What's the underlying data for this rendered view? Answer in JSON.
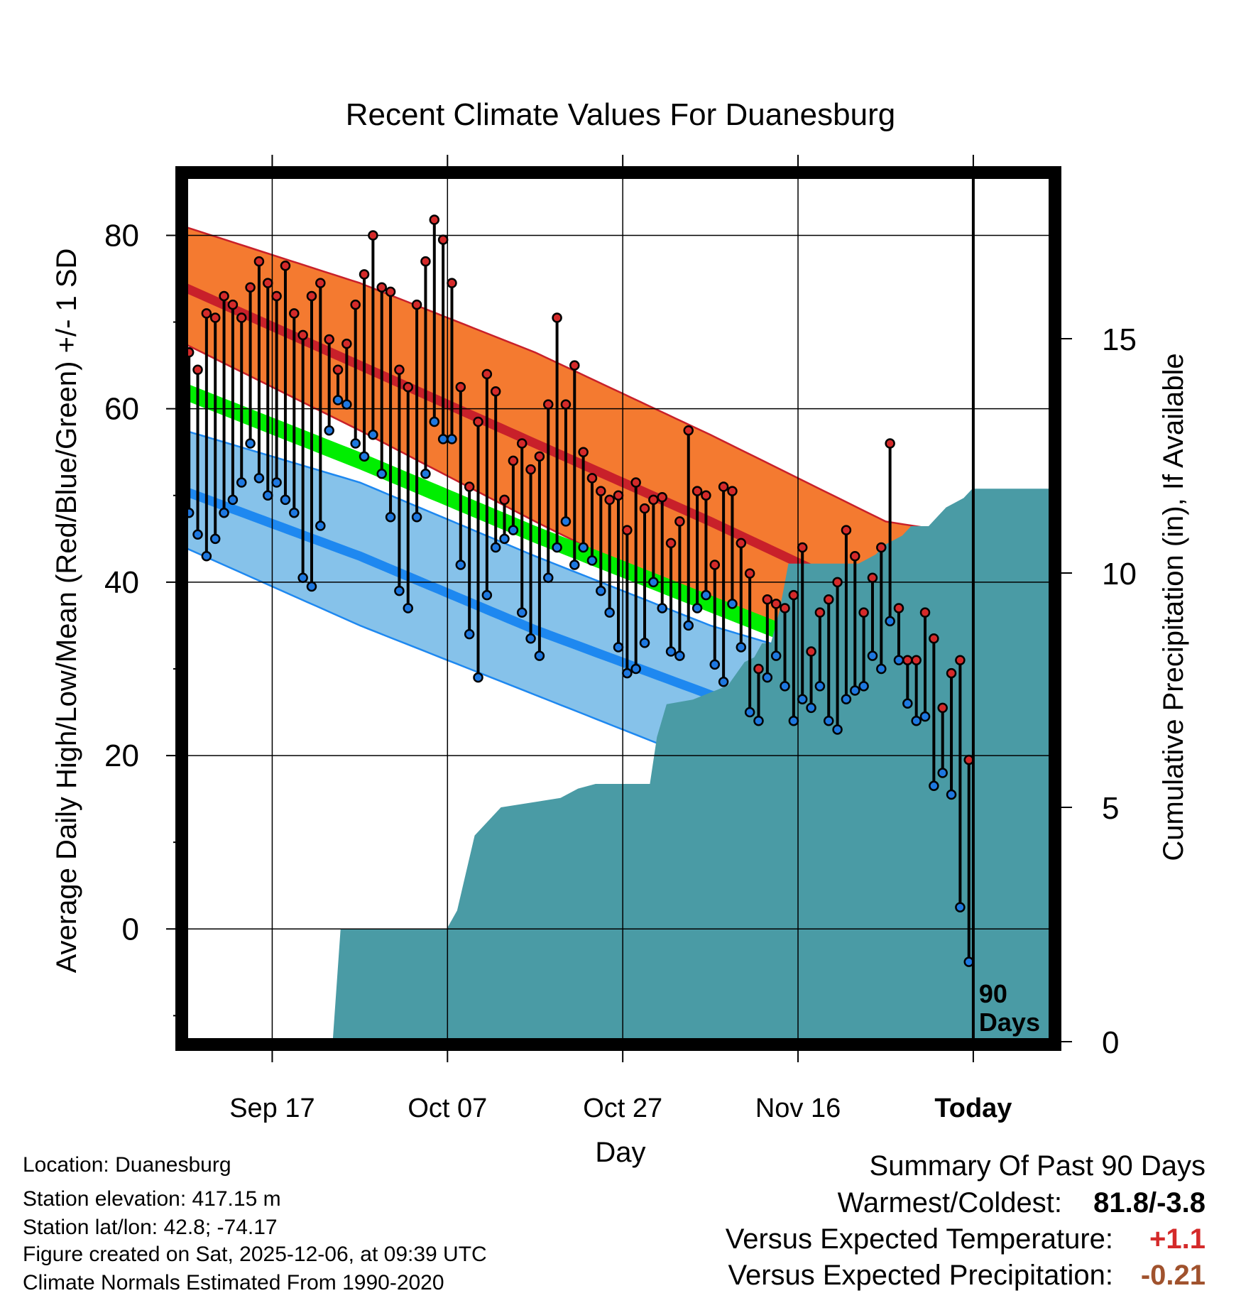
{
  "chart_data": {
    "type": "line",
    "title": "Recent Climate Values For Duanesburg",
    "xlabel": "Day",
    "ylabel": "Average Daily High/Low/Mean (Red/Blue/Green) +/- 1 SD",
    "ylabel_right": "Cumulative Precipitation (in), If Available",
    "x_ticks": [
      {
        "label": "Sep 17",
        "day": 10
      },
      {
        "label": "Oct 07",
        "day": 30
      },
      {
        "label": "Oct 27",
        "day": 50
      },
      {
        "label": "Nov 16",
        "day": 70
      },
      {
        "label": "Today",
        "day": 90
      }
    ],
    "today_day": 90,
    "today_annotation": "90 Days",
    "xlim": [
      0,
      99
    ],
    "ylim": [
      -13,
      87
    ],
    "y_ticks": [
      0,
      20,
      40,
      60,
      80
    ],
    "y2_ticks": [
      0,
      5,
      10,
      15
    ],
    "normals": {
      "high_mean": [
        74,
        65,
        56,
        47,
        37.5,
        34
      ],
      "high_upper": [
        81,
        74.5,
        66.5,
        57,
        47,
        44
      ],
      "high_lower": [
        67.5,
        57.5,
        47,
        37,
        28,
        24
      ],
      "low_mean": [
        50.5,
        43,
        34.5,
        27,
        21,
        17.5
      ],
      "low_upper": [
        57.5,
        51.5,
        43,
        35,
        29,
        29
      ],
      "low_lower": [
        44,
        35,
        27,
        19,
        10,
        7
      ],
      "mean": [
        62,
        54,
        45.5,
        37.5,
        29.5,
        25.5
      ],
      "mean_band_width": 2,
      "days": [
        0,
        20,
        40,
        60,
        80,
        99
      ]
    },
    "series": [
      {
        "name": "Daily High",
        "color": "#d42a2a",
        "values": [
          66.5,
          64.5,
          71,
          70.5,
          73,
          72,
          70.5,
          74,
          77,
          74.5,
          73,
          76.5,
          71,
          68.5,
          73,
          74.5,
          68,
          64.5,
          67.5,
          72,
          75.5,
          80,
          74,
          73.5,
          64.5,
          62.5,
          72,
          77,
          81.8,
          79.5,
          74.5,
          62.5,
          51,
          58.5,
          64,
          62,
          49.5,
          54,
          56,
          53,
          54.5,
          60.5,
          70.5,
          60.5,
          65,
          55,
          52,
          50.5,
          49.5,
          50,
          46,
          51.5,
          48.5,
          49.5,
          49.8,
          44.5,
          47,
          57.5,
          50.5,
          50,
          42,
          51,
          50.5,
          44.5,
          41,
          30,
          38,
          37.5,
          37,
          38.5,
          44,
          32,
          36.5,
          38,
          40,
          46,
          43,
          36.5,
          40.5,
          44,
          56,
          37,
          31,
          31,
          36.5,
          33.5,
          25.5,
          29.5,
          31,
          19.5
        ]
      },
      {
        "name": "Daily Low",
        "color": "#1e78e0",
        "values": [
          48,
          45.5,
          43,
          45,
          48,
          49.5,
          51.5,
          56,
          52,
          50,
          51.5,
          49.5,
          48,
          40.5,
          39.5,
          46.5,
          57.5,
          61,
          60.5,
          56,
          54.5,
          57,
          52.5,
          47.5,
          39,
          37,
          47.5,
          52.5,
          58.5,
          56.5,
          56.5,
          42,
          34,
          29,
          38.5,
          44,
          45,
          46,
          36.5,
          33.5,
          31.5,
          40.5,
          44,
          47,
          42,
          44,
          42.5,
          39,
          36.5,
          32.5,
          29.5,
          30,
          33,
          40,
          37,
          32,
          31.5,
          35,
          37,
          38.5,
          30.5,
          28.5,
          37.5,
          32.5,
          25,
          24,
          29,
          31.5,
          28,
          24,
          26.5,
          25.5,
          28,
          24,
          23,
          26.5,
          27.5,
          28,
          31.5,
          30,
          35.5,
          31,
          26,
          24,
          24.5,
          16.5,
          18,
          15.5,
          2.5,
          -3.8
        ]
      }
    ],
    "precip": {
      "name": "Cumulative Precipitation",
      "color": "#4a9ba5",
      "unit": "in",
      "ylim": [
        0,
        18.5
      ],
      "days": [
        0,
        16.9,
        17.8,
        29.9,
        31.1,
        33.1,
        36.1,
        42.9,
        44.9,
        46.9,
        53.1,
        53.9,
        55,
        58,
        62,
        63.9,
        65,
        65.9,
        66.9,
        67.9,
        68.9,
        69.9,
        70.9,
        71.9,
        72.9,
        73.9,
        74.9,
        75.9,
        76.9,
        77.9,
        78.9,
        79.9,
        80.9,
        81.9,
        82.9,
        83.9,
        84.9,
        85.9,
        86.9,
        87.9,
        88.9,
        89.9,
        99
      ],
      "values": [
        0,
        0,
        2.4,
        2.4,
        2.8,
        4.4,
        5,
        5.2,
        5.4,
        5.5,
        5.5,
        6.5,
        7.2,
        7.3,
        7.6,
        8.1,
        8.2,
        8.5,
        8.5,
        9.2,
        10.2,
        10.2,
        10.2,
        10.2,
        10.2,
        10.2,
        10.2,
        10.2,
        10.2,
        10.3,
        10.4,
        10.6,
        10.7,
        10.8,
        11,
        11,
        11,
        11.2,
        11.4,
        11.5,
        11.6,
        11.8,
        11.8
      ]
    }
  },
  "metadata": {
    "location": "Location: Duanesburg",
    "elevation": "Station elevation: 417.15 m",
    "latlon": "Station lat/lon: 42.8; -74.17",
    "created": "Figure created on Sat, 2025-12-06, at 09:39 UTC",
    "normals_note": "Climate Normals Estimated From 1990-2020"
  },
  "summary": {
    "title": "Summary Of Past 90 Days",
    "warmest_coldest_label": "Warmest/Coldest:",
    "warmest_coldest_value": "81.8/-3.8",
    "temp_label": "Versus Expected Temperature:",
    "temp_value": "+1.1",
    "temp_color": "#d42a2a",
    "precip_label": "Versus Expected Precipitation:",
    "precip_value": "-0.21",
    "precip_color": "#a0522d"
  },
  "colors": {
    "high_band": "#f47a30",
    "high_line": "#c8202a",
    "low_band": "#86c2ea",
    "low_line": "#1e88f0",
    "mean_band": "#00ee00",
    "overlap_band": "#8b1010",
    "precip_fill": "#4a9ba5"
  }
}
